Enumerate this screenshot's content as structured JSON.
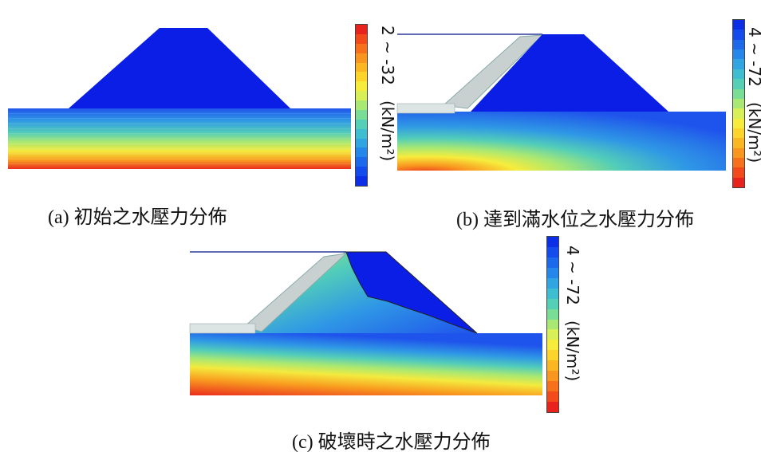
{
  "panels": [
    {
      "id": "a",
      "caption": "(a) 初始之水壓力分佈",
      "colorbar": {
        "range_label": "2 ~ -32",
        "unit_label": "(kN/m²)",
        "orientation": "red-top"
      }
    },
    {
      "id": "b",
      "caption": "(b) 達到滿水位之水壓力分佈",
      "colorbar": {
        "range_label": "4 ~ -72",
        "unit_label": "(kN/m²)",
        "orientation": "blue-top"
      }
    },
    {
      "id": "c",
      "caption": "(c) 破壞時之水壓力分佈",
      "colorbar": {
        "range_label": "4 ~ -72",
        "unit_label": "(kN/m²)",
        "orientation": "blue-top"
      }
    }
  ],
  "colors": {
    "dam_blue": "#0a1ee6",
    "water_line": "#2c3a9a",
    "filter_gray": "#c8d0d0",
    "scale": [
      "#e8231e",
      "#f24a1a",
      "#f7701c",
      "#f9961f",
      "#fbb722",
      "#fdd52a",
      "#f7ec3c",
      "#d8ef57",
      "#a8e873",
      "#79dd96",
      "#55d0b6",
      "#3fbdd1",
      "#31a4e2",
      "#2687ea",
      "#1d69ec",
      "#144bec",
      "#0b2ee6"
    ]
  }
}
